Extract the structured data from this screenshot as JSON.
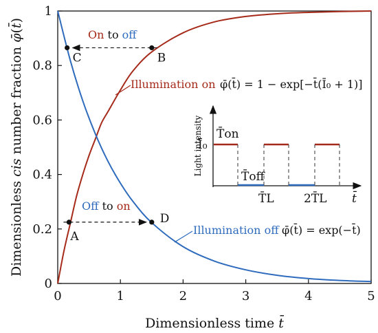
{
  "chart_data": {
    "type": "line",
    "xlabel": "Dimensionless time t̄",
    "ylabel": "Dimensionless cis number fraction φ̄(t̄)",
    "xlim": [
      0,
      5
    ],
    "ylim": [
      0,
      1
    ],
    "xticks": [
      "0",
      "1",
      "2",
      "3",
      "4",
      "5"
    ],
    "yticks": [
      "0",
      "0.2",
      "0.4",
      "0.6",
      "0.8",
      "1"
    ],
    "grid": false,
    "series": [
      {
        "name": "Illumination on",
        "equation": "φ̄(t̄) = 1 − exp[−t̄(Ī₀ + 1)]",
        "color": "#a52a1a",
        "x": [
          0,
          0.1,
          0.2,
          0.3,
          0.4,
          0.5,
          0.6,
          0.7,
          0.8,
          1.0,
          1.2,
          1.5,
          2.0,
          2.5,
          3.0,
          3.5,
          4.0,
          4.5,
          5.0
        ],
        "y": [
          0,
          0.12,
          0.22,
          0.32,
          0.4,
          0.47,
          0.53,
          0.59,
          0.63,
          0.71,
          0.78,
          0.85,
          0.92,
          0.96,
          0.98,
          0.99,
          0.995,
          0.998,
          1.0
        ]
      },
      {
        "name": "Illumination off",
        "equation": "φ̄(t̄) = exp(−t̄)",
        "color": "#2e6bbd",
        "x": [
          0,
          0.2,
          0.4,
          0.6,
          0.8,
          1.0,
          1.2,
          1.5,
          2.0,
          2.5,
          3.0,
          3.5,
          4.0,
          4.5,
          5.0
        ],
        "y": [
          1.0,
          0.819,
          0.67,
          0.549,
          0.449,
          0.368,
          0.301,
          0.223,
          0.135,
          0.082,
          0.05,
          0.03,
          0.018,
          0.011,
          0.007
        ]
      }
    ],
    "points": [
      {
        "label": "A",
        "x": 0.18,
        "y": 0.225
      },
      {
        "label": "B",
        "x": 1.5,
        "y": 0.865
      },
      {
        "label": "C",
        "x": 0.15,
        "y": 0.865
      },
      {
        "label": "D",
        "x": 1.5,
        "y": 0.225
      }
    ],
    "transitions": [
      {
        "text_a": "On",
        "text_mid": "to",
        "text_b": "off",
        "from": "B",
        "to": "C"
      },
      {
        "text_a": "Off",
        "text_mid": "to",
        "text_b": "on",
        "from": "A",
        "to": "D"
      }
    ],
    "inset": {
      "ylabel": "Light intensity",
      "i0_label": "Ī₀",
      "t_on_label": "T̄on",
      "t_off_label": "T̄off",
      "tl_label": "T̄L",
      "tl2_label": "2T̄L",
      "t_label": "t̄",
      "on_color": "#a52a1a",
      "off_color": "#2e6bbd"
    }
  }
}
